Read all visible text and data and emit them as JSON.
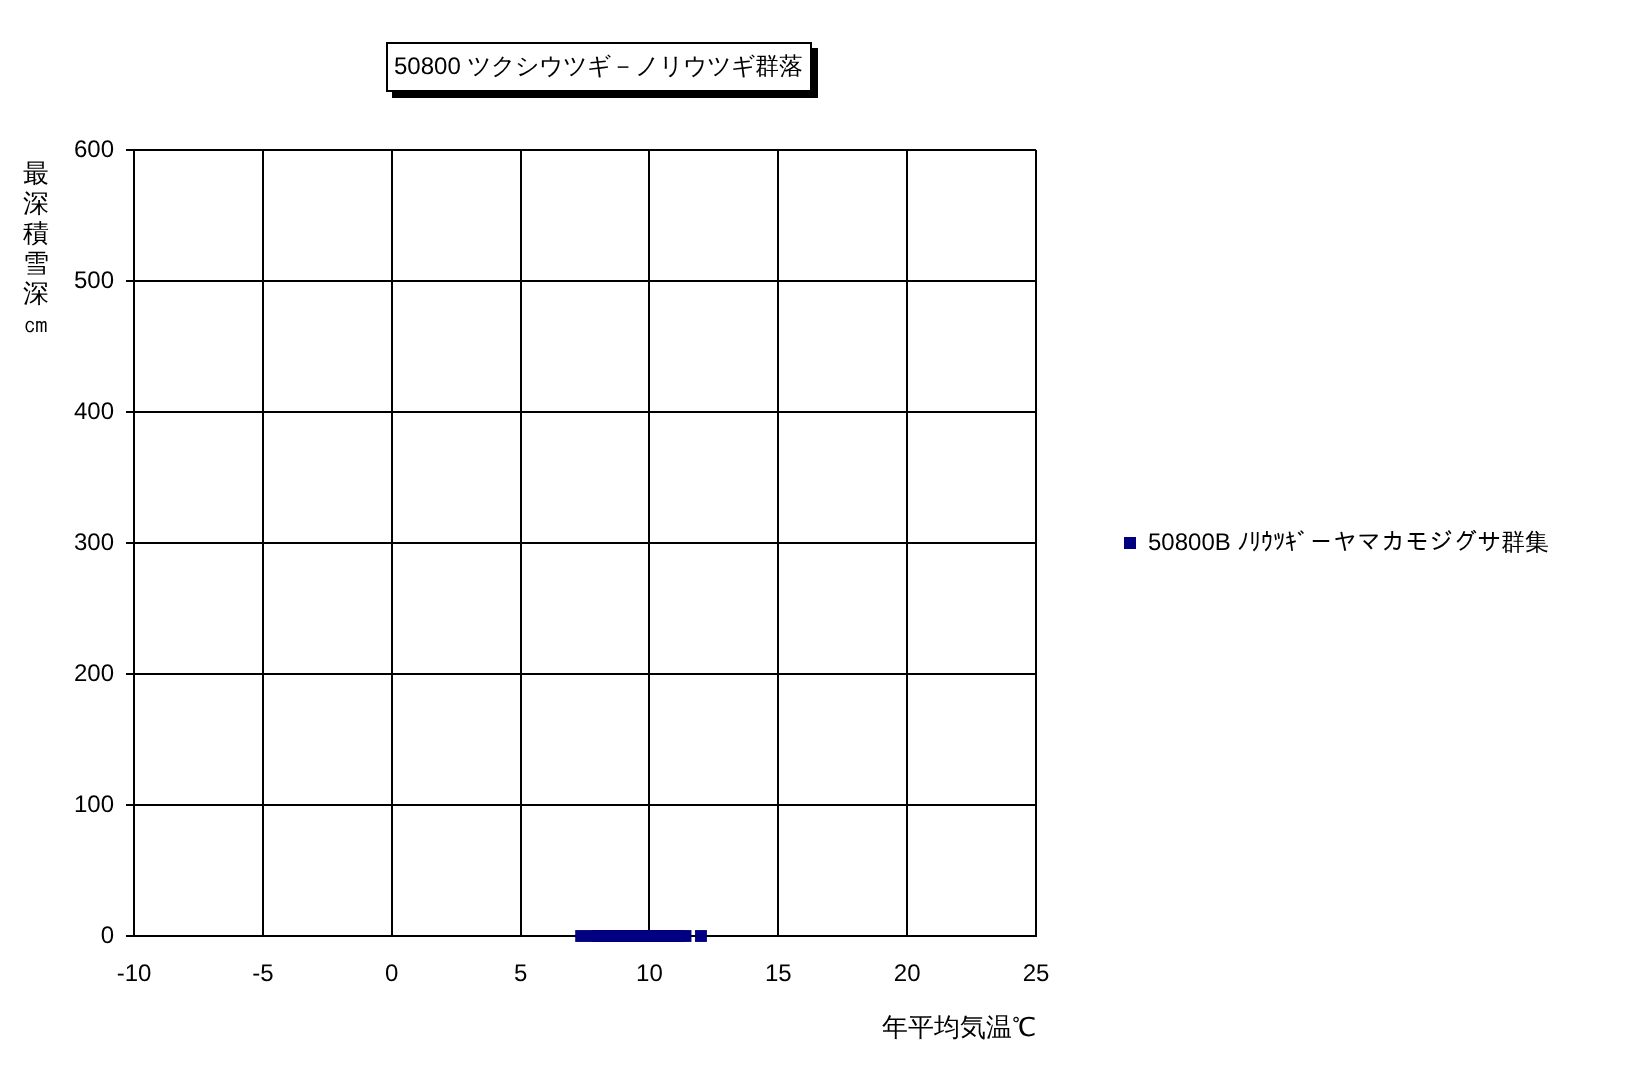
{
  "chart_data": {
    "type": "scatter",
    "title": "50800 ツクシウツギ－ノリウツギ群落",
    "xlabel": "年平均気温℃",
    "ylabel": "最深積雪深㎝",
    "x": [
      7.35,
      7.8,
      8.0,
      8.2,
      8.4,
      8.6,
      8.8,
      9.0,
      9.2,
      9.4,
      9.6,
      9.8,
      10.0,
      10.2,
      10.4,
      10.6,
      10.8,
      11.0,
      11.2,
      11.4,
      12.0
    ],
    "series": [
      {
        "name": "50800B ﾉﾘｳﾂｷﾞ－ヤマカモジグサ群集",
        "color": "#000080",
        "values": [
          0,
          0,
          0,
          0,
          0,
          0,
          0,
          0,
          0,
          0,
          0,
          0,
          0,
          0,
          0,
          0,
          0,
          0,
          0,
          0,
          0
        ]
      }
    ],
    "xlim": [
      -10,
      25
    ],
    "xticks": [
      -10,
      -5,
      0,
      5,
      10,
      15,
      20,
      25
    ],
    "ylim": [
      0,
      600
    ],
    "yticks": [
      0,
      100,
      200,
      300,
      400,
      500,
      600
    ],
    "grid": true,
    "legend": "right",
    "marker": "square"
  }
}
